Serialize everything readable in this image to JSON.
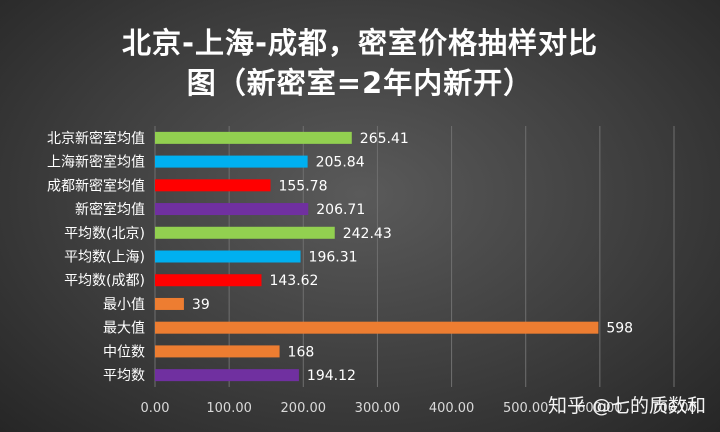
{
  "chart_data": {
    "type": "bar",
    "orientation": "horizontal",
    "title_lines": [
      "北京-上海-成都，密室价格抽样对比",
      "图（新密室=2年内新开）"
    ],
    "categories": [
      "北京新密室均值",
      "上海新密室均值",
      "成都新密室均值",
      "新密室均值",
      "平均数(北京)",
      "平均数(上海)",
      "平均数(成都)",
      "最小值",
      "最大值",
      "中位数",
      "平均数"
    ],
    "values": [
      265.41,
      205.84,
      155.78,
      206.71,
      242.43,
      196.31,
      143.62,
      39,
      598,
      168,
      194.12
    ],
    "value_labels": [
      "265.41",
      "205.84",
      "155.78",
      "206.71",
      "242.43",
      "196.31",
      "143.62",
      "39",
      "598",
      "168",
      "194.12"
    ],
    "colors": [
      "#92d050",
      "#00b0f0",
      "#ff0000",
      "#7030a0",
      "#92d050",
      "#00b0f0",
      "#ff0000",
      "#ed7d31",
      "#ed7d31",
      "#ed7d31",
      "#7030a0"
    ],
    "xlim": [
      0,
      700
    ],
    "xticks": [
      0,
      100,
      200,
      300,
      400,
      500,
      600,
      700
    ],
    "xtick_labels": [
      "0.00",
      "100.00",
      "200.00",
      "300.00",
      "400.00",
      "500.00",
      "600.00",
      "700.00"
    ],
    "grid": "vertical",
    "legend": "none"
  },
  "watermark": "知乎 @七的质数和"
}
